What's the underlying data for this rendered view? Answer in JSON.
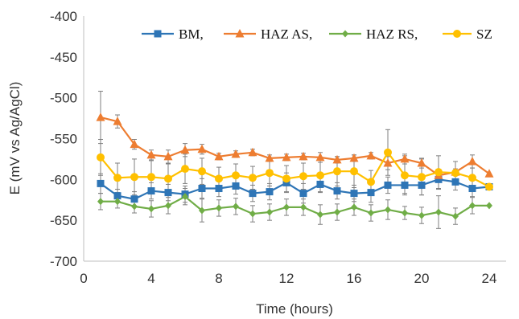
{
  "chart_data": {
    "type": "line",
    "title": "",
    "xlabel": "Time (hours)",
    "ylabel": "E (mV vs Ag/AgCl)",
    "xlim": [
      0,
      25
    ],
    "ylim": [
      -700,
      -400
    ],
    "xticks": [
      0,
      4,
      8,
      12,
      16,
      20,
      24
    ],
    "yticks": [
      -400,
      -450,
      -500,
      -550,
      -600,
      -650,
      -700
    ],
    "grid": false,
    "legend_position": "top",
    "x": [
      1,
      2,
      3,
      4,
      5,
      6,
      7,
      8,
      9,
      10,
      11,
      12,
      13,
      14,
      15,
      16,
      17,
      18,
      19,
      20,
      21,
      22,
      23,
      24
    ],
    "series": [
      {
        "name": "BM,",
        "color": "#2e75b6",
        "marker": "square",
        "values": [
          -605,
          -620,
          -624,
          -614,
          -616,
          -618,
          -611,
          -611,
          -608,
          -617,
          -615,
          -604,
          -617,
          -606,
          -614,
          -617,
          -616,
          -607,
          -607,
          -607,
          -600,
          -603,
          -611,
          -609
        ],
        "errors": [
          12,
          8,
          9,
          10,
          10,
          10,
          12,
          10,
          10,
          10,
          10,
          12,
          12,
          10,
          10,
          10,
          12,
          10,
          10,
          12,
          12,
          10,
          10,
          0
        ]
      },
      {
        "name": "HAZ AS,",
        "color": "#ed7d31",
        "marker": "triangle",
        "values": [
          -524,
          -529,
          -557,
          -570,
          -572,
          -564,
          -563,
          -572,
          -569,
          -567,
          -574,
          -573,
          -572,
          -573,
          -576,
          -574,
          -571,
          -580,
          -575,
          -580,
          -595,
          -591,
          -578,
          -593
        ],
        "errors": [
          32,
          8,
          6,
          6,
          8,
          8,
          6,
          4,
          4,
          4,
          4,
          4,
          4,
          6,
          4,
          4,
          4,
          8,
          6,
          6,
          6,
          4,
          8,
          0
        ]
      },
      {
        "name": "HAZ RS,",
        "color": "#70ad47",
        "marker": "diamond",
        "values": [
          -627,
          -627,
          -633,
          -636,
          -632,
          -621,
          -638,
          -635,
          -633,
          -642,
          -640,
          -634,
          -634,
          -643,
          -640,
          -634,
          -641,
          -637,
          -641,
          -644,
          -640,
          -645,
          -632,
          -632
        ],
        "errors": [
          10,
          8,
          8,
          10,
          10,
          10,
          14,
          10,
          10,
          10,
          10,
          10,
          10,
          12,
          10,
          10,
          10,
          12,
          8,
          10,
          20,
          10,
          10,
          0
        ]
      },
      {
        "name": "SZ",
        "color": "#ffc000",
        "marker": "circle",
        "values": [
          -573,
          -598,
          -597,
          -597,
          -599,
          -587,
          -590,
          -599,
          -595,
          -598,
          -592,
          -599,
          -596,
          -595,
          -590,
          -590,
          -603,
          -567,
          -595,
          -597,
          -591,
          -592,
          -598,
          -609
        ],
        "errors": [
          22,
          18,
          22,
          20,
          18,
          18,
          16,
          14,
          14,
          14,
          16,
          16,
          16,
          20,
          18,
          20,
          14,
          28,
          24,
          22,
          20,
          14,
          12,
          0
        ]
      }
    ]
  }
}
